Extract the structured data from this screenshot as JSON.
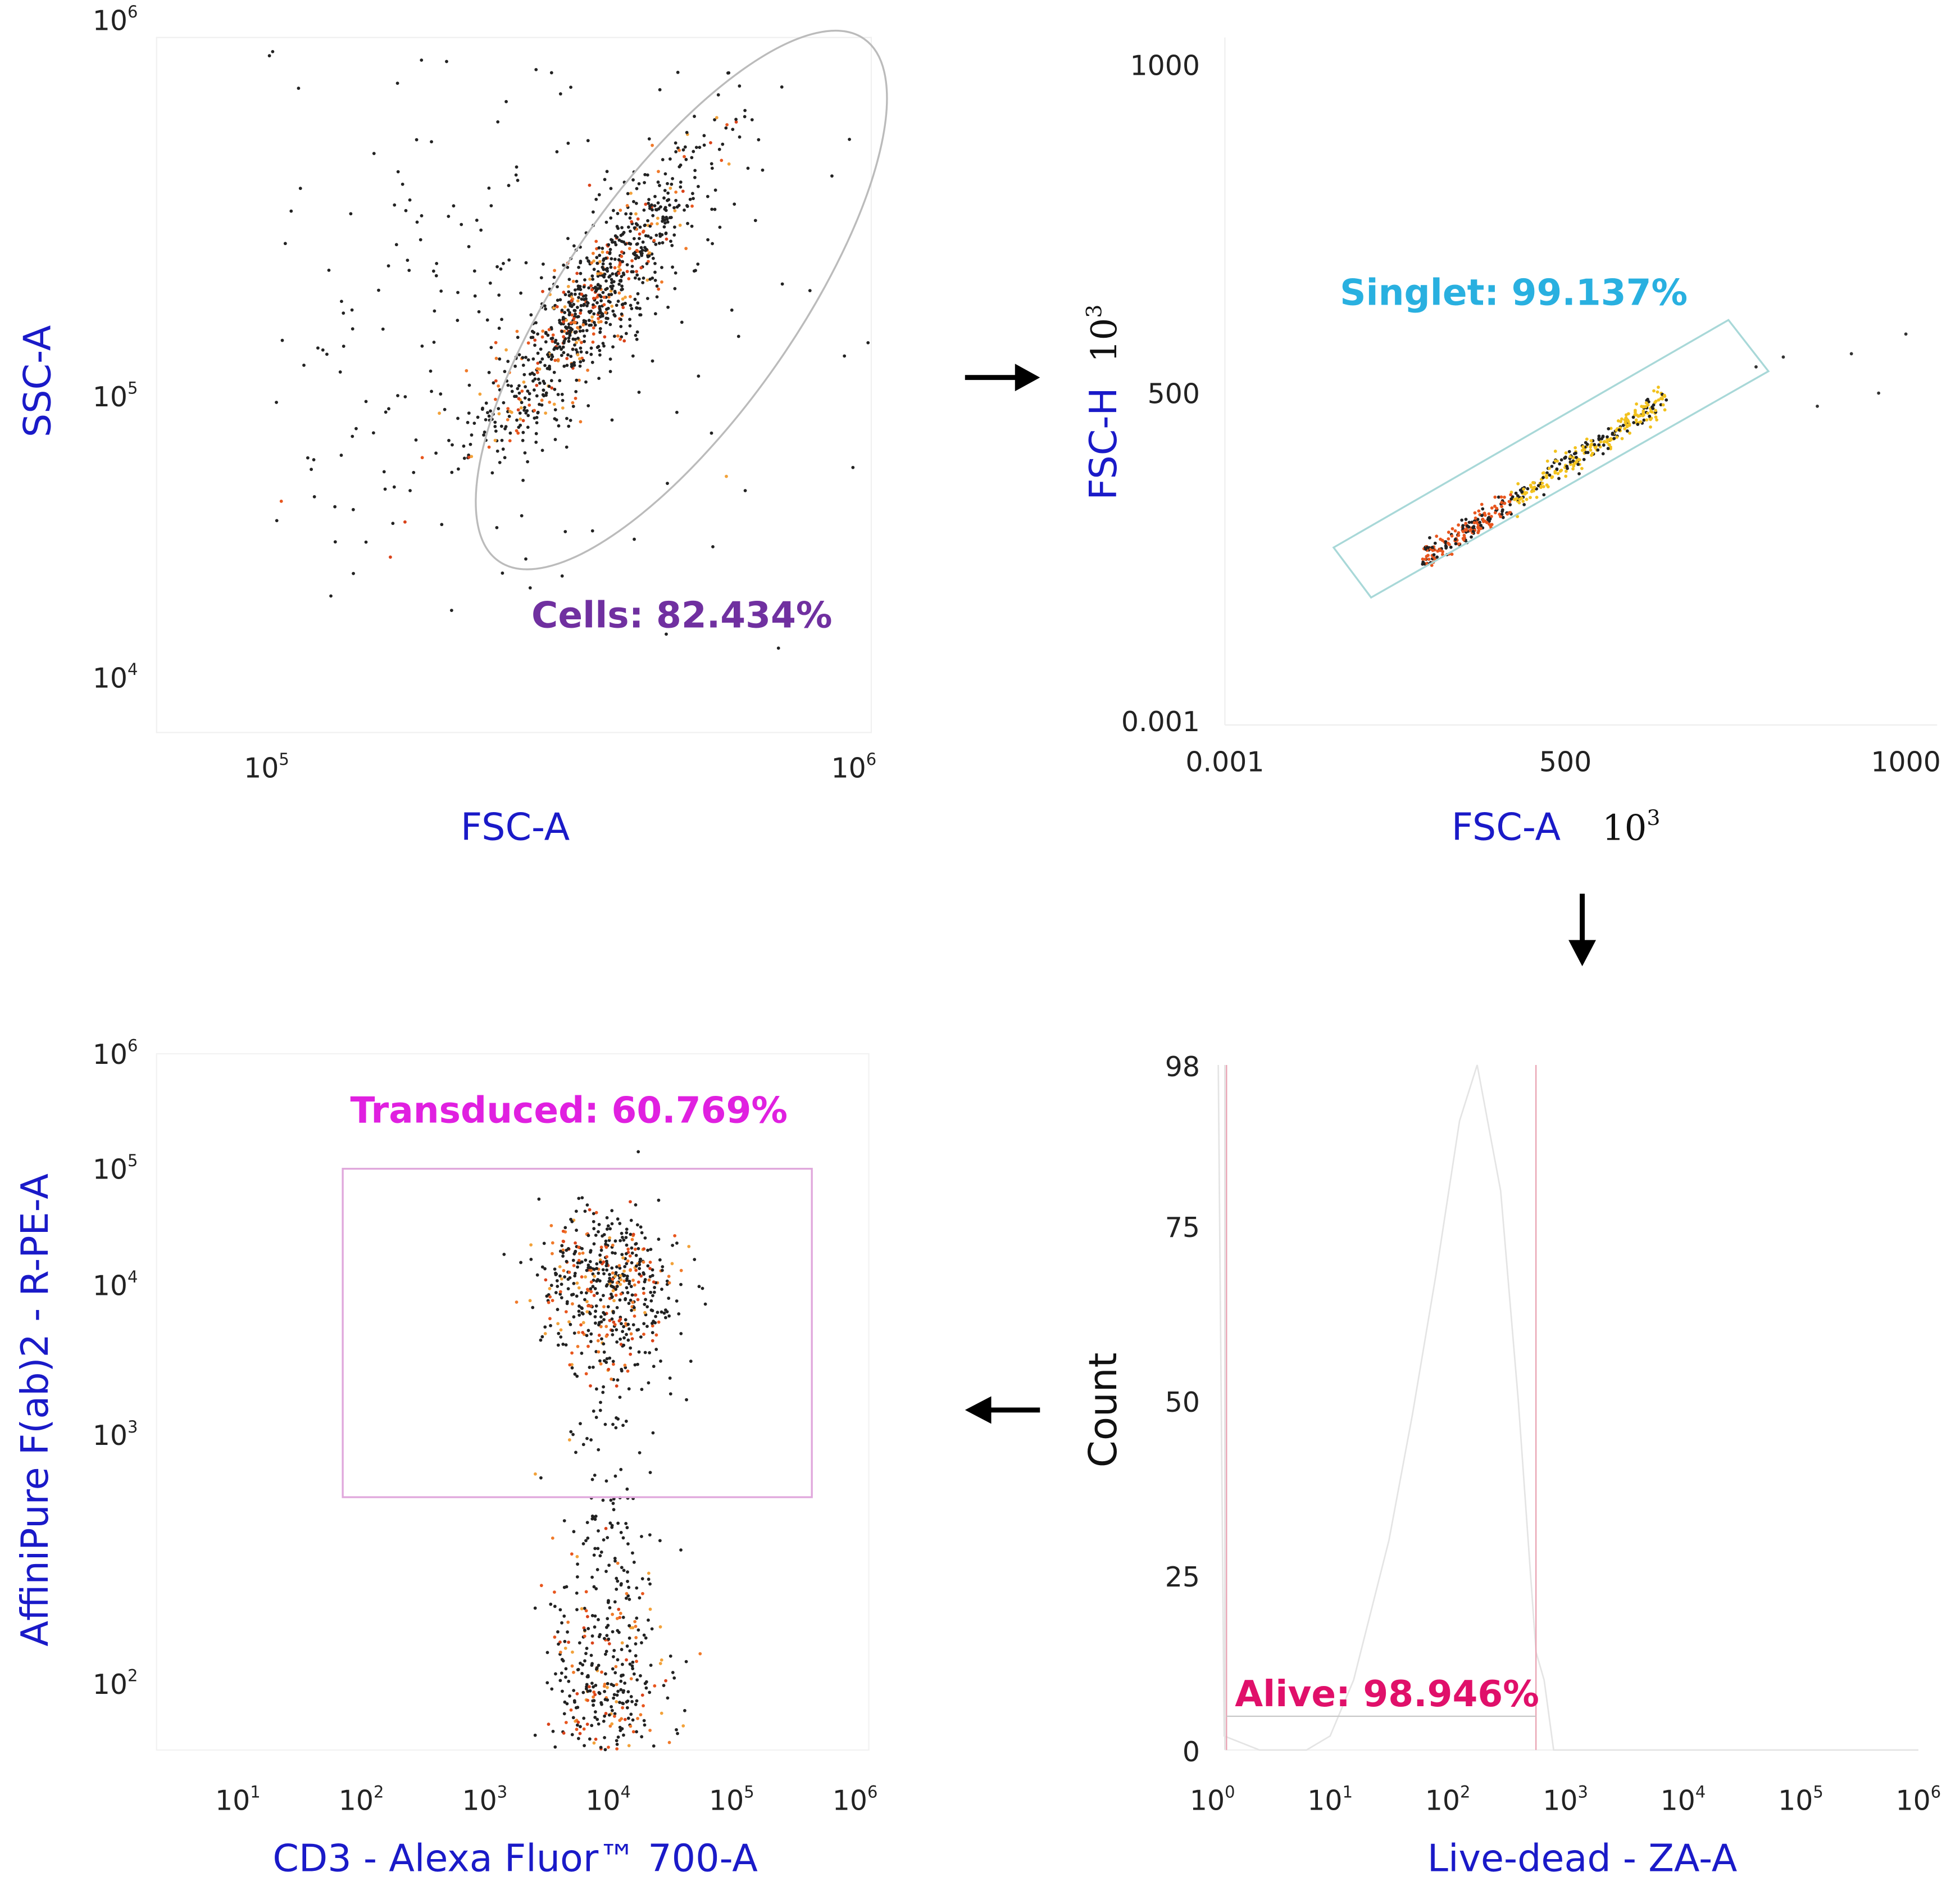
{
  "chart_data": [
    {
      "type": "scatter",
      "panel": "fsc-ssc",
      "xlabel": "FSC-A",
      "ylabel": "SSC-A",
      "xscale": "log",
      "yscale": "log",
      "xlim_log10": [
        4.81,
        6.03
      ],
      "ylim_log10": [
        3.9,
        6.0
      ],
      "xticks": [
        {
          "base": "10",
          "exp": "5",
          "log10": 5
        },
        {
          "base": "10",
          "exp": "6",
          "log10": 6
        }
      ],
      "yticks": [
        {
          "base": "10",
          "exp": "6",
          "log10": 6
        },
        {
          "base": "10",
          "exp": "5",
          "log10": 5
        },
        {
          "base": "10",
          "exp": "4",
          "log10": 4
        }
      ],
      "gate": {
        "name": "Cells",
        "label": "Cells: 82.434%",
        "shape": "ellipse",
        "color": "#7030a0",
        "line_color": "#bbbbbb",
        "percent": 82.434
      },
      "clusters": [
        {
          "center_log10": [
            5.55,
            5.25
          ],
          "sd_log10": [
            0.1,
            0.22
          ],
          "corr": 0.9,
          "n": 900,
          "hot_fraction": 0.25
        },
        {
          "center_log10": [
            5.35,
            5.2
          ],
          "sd_log10": [
            0.28,
            0.45
          ],
          "corr": 0,
          "n": 260,
          "hot_fraction": 0.02
        }
      ]
    },
    {
      "type": "scatter",
      "panel": "singlet",
      "xlabel": "FSC-A",
      "xunit": "10",
      "xunit_exp": "3",
      "ylabel": "FSC-H",
      "yunit": "10",
      "yunit_exp": "3",
      "xlim": [
        0.001,
        1050
      ],
      "ylim": [
        0.001,
        1000
      ],
      "xticks": [
        "0.001",
        "500",
        "1000"
      ],
      "yticks": [
        "1000",
        "500",
        "0.001"
      ],
      "xtick_values": [
        0.001,
        500,
        1000
      ],
      "ytick_values": [
        1000,
        500,
        0.001
      ],
      "gate": {
        "name": "Singlet",
        "label": "Singlet: 99.137%",
        "shape": "polygon",
        "color": "#29b0e0",
        "line_color": "#a8d8d8",
        "percent": 99.137
      },
      "clusters": [
        {
          "x_range": [
            290,
            650
          ],
          "slope": 0.68,
          "intercept": -30,
          "sd_y": 10,
          "n": 500,
          "hot_fraction": 0.6
        }
      ]
    },
    {
      "type": "histogram",
      "panel": "live-dead",
      "xlabel": "Live-dead - ZA-A",
      "ylabel": "Count",
      "xscale": "log",
      "xlim_log10": [
        0,
        6
      ],
      "ylim": [
        0,
        98
      ],
      "xticks": [
        {
          "base": "10",
          "exp": "0",
          "log10": 0
        },
        {
          "base": "10",
          "exp": "1",
          "log10": 1
        },
        {
          "base": "10",
          "exp": "2",
          "log10": 2
        },
        {
          "base": "10",
          "exp": "3",
          "log10": 3
        },
        {
          "base": "10",
          "exp": "4",
          "log10": 4
        },
        {
          "base": "10",
          "exp": "5",
          "log10": 5
        },
        {
          "base": "10",
          "exp": "6",
          "log10": 6
        }
      ],
      "yticks": [
        "98",
        "75",
        "50",
        "25",
        "0"
      ],
      "ytick_values": [
        98,
        75,
        50,
        25,
        0
      ],
      "gate": {
        "name": "Alive",
        "label": "Alive: 98.946%",
        "color": "#e0106a",
        "line_color": "#e8a0b0",
        "range_log10": [
          0.12,
          2.75
        ],
        "percent": 98.946
      },
      "curve": {
        "x_log10": [
          0.05,
          0.1,
          0.4,
          0.8,
          1.0,
          1.2,
          1.5,
          1.7,
          1.9,
          2.1,
          2.25,
          2.45,
          2.6,
          2.75,
          2.82,
          2.9,
          3.0,
          4,
          6
        ],
        "y": [
          98,
          2,
          0,
          0,
          2,
          10,
          30,
          48,
          68,
          90,
          98,
          80,
          50,
          14,
          10,
          0,
          0,
          0,
          0
        ]
      }
    },
    {
      "type": "scatter",
      "panel": "transduced",
      "xlabel": "CD3 - Alexa Fluor™ 700-A",
      "ylabel": "AffiniPure F(ab)2 - R-PE-A",
      "xscale": "log",
      "yscale": "log",
      "xlim_log10": [
        0.4,
        6.05
      ],
      "ylim_log10": [
        1.7,
        6.0
      ],
      "xticks": [
        {
          "base": "10",
          "exp": "1",
          "log10": 1
        },
        {
          "base": "10",
          "exp": "2",
          "log10": 2
        },
        {
          "base": "10",
          "exp": "3",
          "log10": 3
        },
        {
          "base": "10",
          "exp": "4",
          "log10": 4
        },
        {
          "base": "10",
          "exp": "5",
          "log10": 5
        },
        {
          "base": "10",
          "exp": "6",
          "log10": 6
        }
      ],
      "yticks": [
        {
          "base": "10",
          "exp": "6",
          "log10": 6
        },
        {
          "base": "10",
          "exp": "5",
          "log10": 5
        },
        {
          "base": "10",
          "exp": "4",
          "log10": 4
        },
        {
          "base": "10",
          "exp": "3",
          "log10": 3
        },
        {
          "base": "10",
          "exp": "2",
          "log10": 2
        }
      ],
      "gate": {
        "name": "Transduced",
        "label": "Transduced: 60.769%",
        "shape": "rectangle",
        "color": "#e020e0",
        "line_color": "#e0a8dc",
        "x_log10": [
          1.85,
          5.65
        ],
        "y_log10": [
          2.75,
          5.0
        ],
        "percent": 60.769
      },
      "clusters": [
        {
          "center_log10": [
            4.0,
            4.0
          ],
          "sd_log10": [
            0.28,
            0.3
          ],
          "corr": 0,
          "n": 550,
          "hot_fraction": 0.35
        },
        {
          "center_log10": [
            4.0,
            1.95
          ],
          "sd_log10": [
            0.25,
            0.28
          ],
          "corr": 0,
          "n": 420,
          "hot_fraction": 0.3
        },
        {
          "center_log10": [
            4.0,
            2.7
          ],
          "sd_log10": [
            0.18,
            0.35
          ],
          "corr": 0,
          "n": 90,
          "hot_fraction": 0
        }
      ]
    }
  ],
  "arrows": [
    "right",
    "down",
    "left"
  ]
}
